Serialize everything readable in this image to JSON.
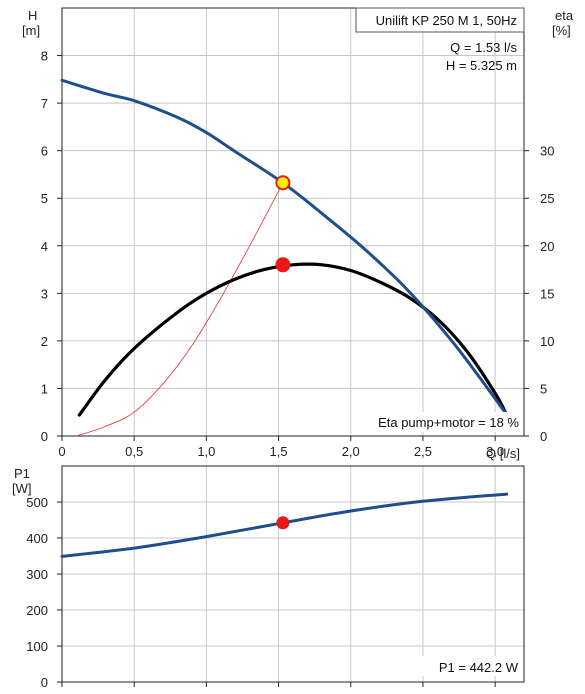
{
  "chart_data": [
    {
      "type": "line",
      "title": "Unilift KP 250 M 1, 50Hz",
      "annotations": {
        "flow": "Q = 1.53 l/s",
        "head": "H = 5.325 m",
        "efficiency": "Eta pump+motor = 18 %"
      },
      "x_axis": {
        "label": "Q [l/s]",
        "range": [
          0,
          3.2
        ],
        "ticks": [
          0,
          0.5,
          1.0,
          1.5,
          2.0,
          2.5,
          3.0
        ],
        "tick_labels": [
          "0",
          "0,5",
          "1,0",
          "1,5",
          "2,0",
          "2,5",
          "3,0"
        ]
      },
      "y_axis_left": {
        "label_top": "H",
        "label_unit": "[m]",
        "range": [
          0,
          9
        ],
        "ticks": [
          0,
          1,
          2,
          3,
          4,
          5,
          6,
          7,
          8
        ]
      },
      "y_axis_right": {
        "label_top": "eta",
        "label_unit": "[%]",
        "range": [
          0,
          45
        ],
        "ticks": [
          0,
          5,
          10,
          15,
          20,
          25,
          30
        ]
      },
      "grid": true,
      "series": [
        {
          "axis": "left",
          "color": "#1f4e8c",
          "x": [
            0,
            0.3,
            0.5,
            0.8,
            1.0,
            1.2,
            1.53,
            1.8,
            2.1,
            2.4,
            2.7,
            2.9,
            3.08
          ],
          "y": [
            7.48,
            7.2,
            7.05,
            6.7,
            6.38,
            5.98,
            5.325,
            4.68,
            3.92,
            3.05,
            2.0,
            1.2,
            0.45
          ]
        },
        {
          "axis": "right",
          "color": "#000000",
          "x": [
            0.12,
            0.3,
            0.5,
            0.8,
            1.0,
            1.2,
            1.4,
            1.6,
            1.8,
            2.0,
            2.2,
            2.4,
            2.6,
            2.8,
            3.0,
            3.08
          ],
          "y": [
            2.2,
            5.9,
            9.2,
            13.0,
            15.0,
            16.5,
            17.5,
            18.0,
            18.0,
            17.4,
            16.2,
            14.6,
            12.3,
            9.0,
            4.5,
            2.2
          ]
        },
        {
          "axis": "left",
          "color": "#e0453a",
          "x": [
            0.1,
            0.3,
            0.5,
            0.7,
            0.9,
            1.1,
            1.3,
            1.53
          ],
          "y": [
            0.0,
            0.2,
            0.5,
            1.1,
            1.9,
            2.9,
            4.0,
            5.325
          ]
        }
      ],
      "operating_points": [
        {
          "x": 1.53,
          "y": 5.325,
          "axis": "left",
          "fill": "#ffee00",
          "stroke": "#e02020"
        },
        {
          "x": 1.53,
          "y": 18,
          "axis": "right",
          "fill": "#e81818",
          "stroke": "#e81818"
        }
      ]
    },
    {
      "type": "line",
      "annotations": {
        "power": "P1 = 442.2 W"
      },
      "y_axis": {
        "label_top": "P1",
        "label_unit": "[W]",
        "range": [
          0,
          600
        ],
        "ticks": [
          0,
          100,
          200,
          300,
          400,
          500
        ]
      },
      "x_range": [
        0,
        3.2
      ],
      "x_ticks": [
        0,
        0.5,
        1.0,
        1.5,
        2.0,
        2.5,
        3.0
      ],
      "grid": true,
      "series": [
        {
          "color": "#1f4e8c",
          "x": [
            0,
            0.5,
            1.0,
            1.53,
            2.0,
            2.5,
            3.08
          ],
          "y": [
            349,
            372,
            404,
            442.2,
            475,
            502,
            522
          ]
        }
      ],
      "operating_point": {
        "x": 1.53,
        "y": 442.2,
        "fill": "#e81818"
      }
    }
  ]
}
